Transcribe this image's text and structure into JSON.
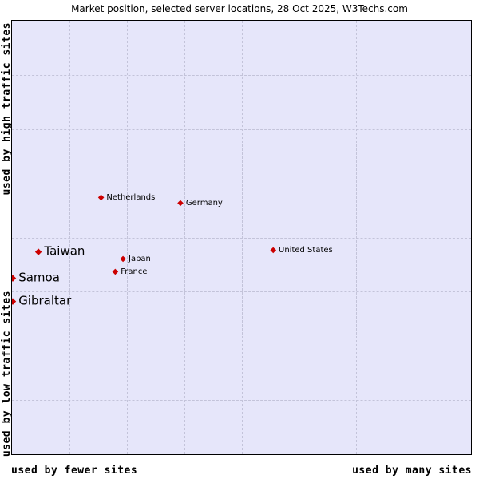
{
  "title": "Market position, selected server locations, 28 Oct 2025, W3Techs.com",
  "axes": {
    "y_top": "used by high traffic sites",
    "y_bottom": "used by low traffic sites",
    "x_left": "used by fewer sites",
    "x_right": "used by many sites"
  },
  "chart_data": {
    "type": "scatter",
    "title": "Market position, selected server locations, 28 Oct 2025, W3Techs.com",
    "x_axis": {
      "label_left": "used by fewer sites",
      "label_right": "used by many sites"
    },
    "y_axis": {
      "label_top": "used by high traffic sites",
      "label_bottom": "used by low traffic sites"
    },
    "grid": {
      "vertical_lines": 7,
      "horizontal_lines": 7,
      "style": "dashed"
    },
    "marker": {
      "shape": "diamond",
      "color": "#cc0000"
    },
    "background": "#e6e6fa",
    "points": [
      {
        "label": "Netherlands",
        "x_pct": 19.6,
        "y_pct": 40.9,
        "emphasis": "small"
      },
      {
        "label": "Germany",
        "x_pct": 36.9,
        "y_pct": 42.2,
        "emphasis": "small"
      },
      {
        "label": "United States",
        "x_pct": 57.1,
        "y_pct": 53.0,
        "emphasis": "small"
      },
      {
        "label": "Taiwan",
        "x_pct": 5.9,
        "y_pct": 53.2,
        "emphasis": "large"
      },
      {
        "label": "Japan",
        "x_pct": 24.4,
        "y_pct": 55.0,
        "emphasis": "small"
      },
      {
        "label": "France",
        "x_pct": 22.7,
        "y_pct": 58.0,
        "emphasis": "small"
      },
      {
        "label": "Samoa",
        "x_pct": 0.3,
        "y_pct": 59.3,
        "emphasis": "large"
      },
      {
        "label": "Gibraltar",
        "x_pct": 0.3,
        "y_pct": 64.6,
        "emphasis": "large"
      }
    ]
  },
  "colors": {
    "plot_background": "#e6e6fa",
    "marker": "#cc0000",
    "grid": "#c3c3d9"
  }
}
